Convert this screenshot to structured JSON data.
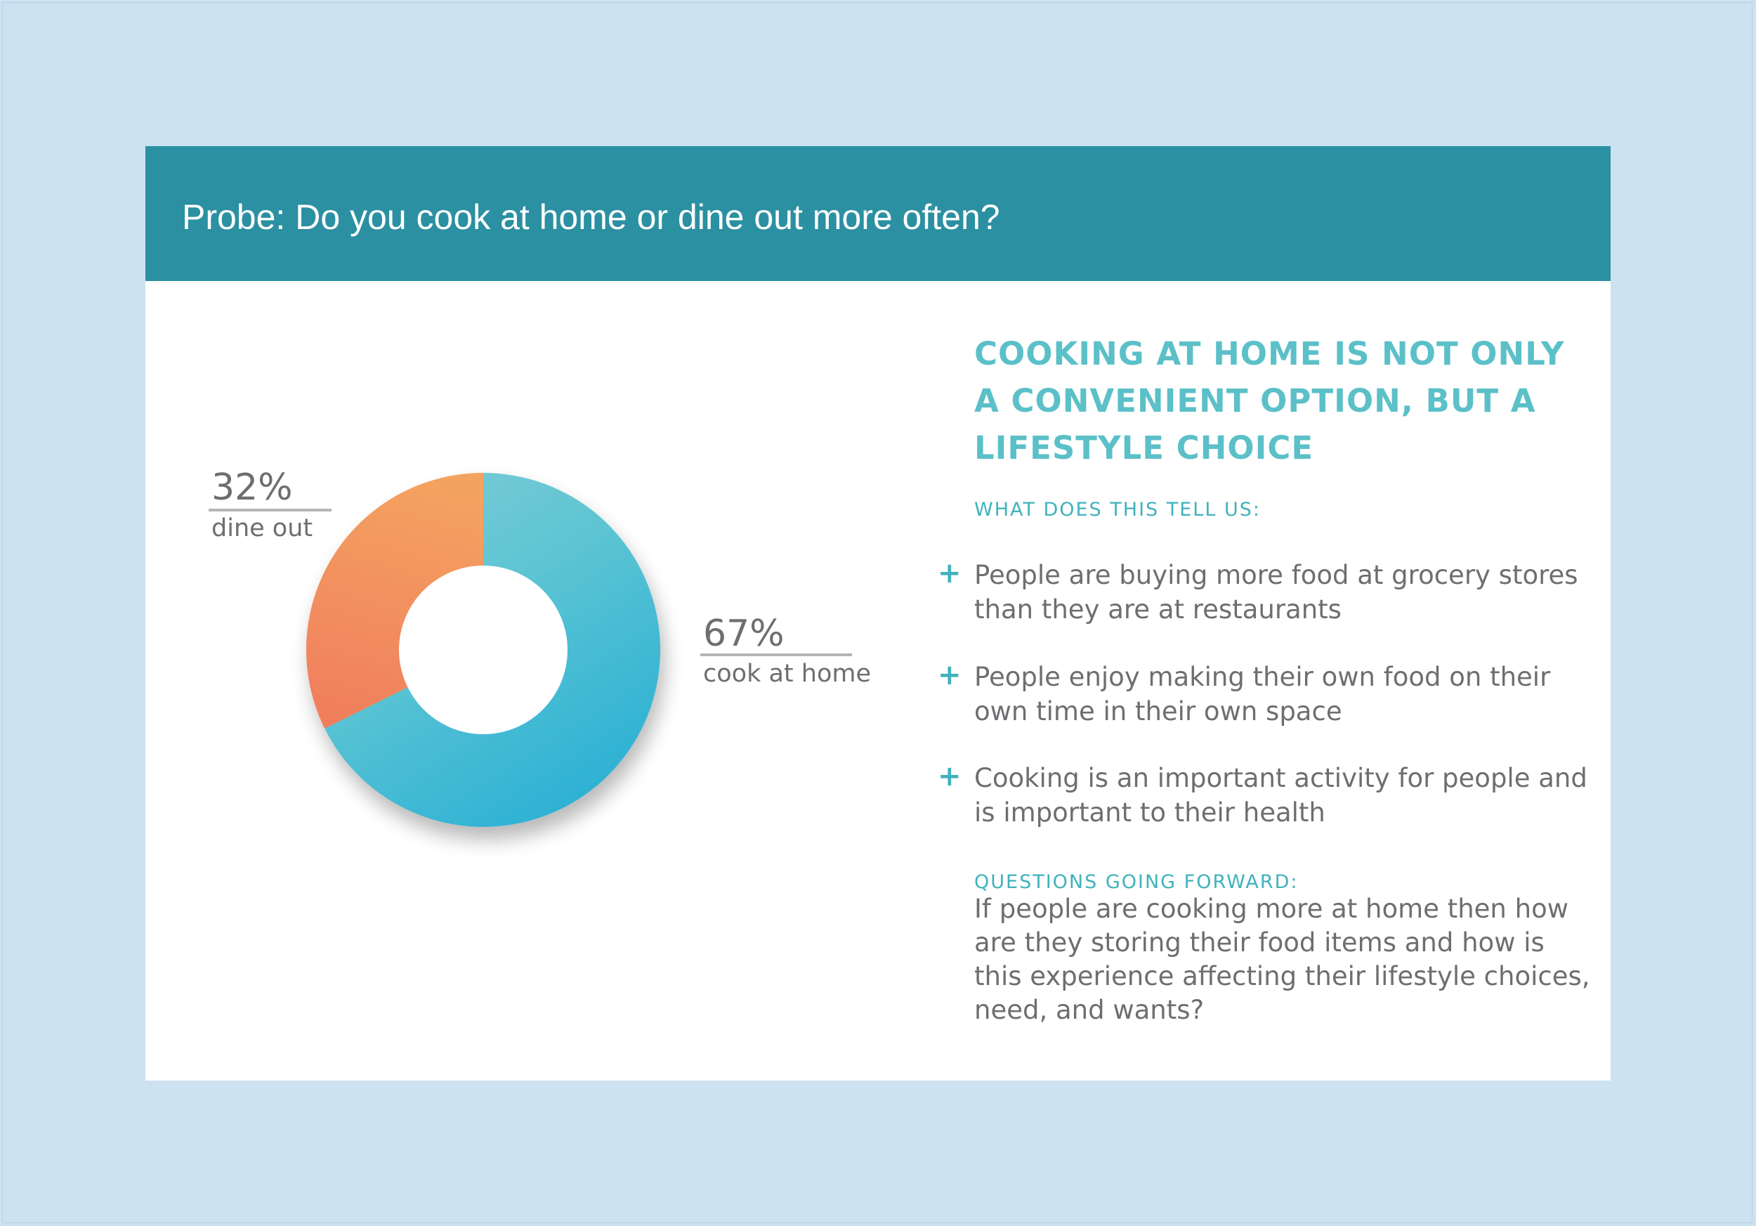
{
  "header": {
    "title": "Probe: Do you cook at home or dine out more often?"
  },
  "chart_data": {
    "type": "pie",
    "donut": true,
    "slices": [
      {
        "label": "cook at home",
        "value": 67,
        "display": "67%",
        "color": "#3fbad3"
      },
      {
        "label": "dine out",
        "value": 32,
        "display": "32%",
        "color": "#f3895f"
      }
    ]
  },
  "insights": {
    "headline": "COOKING AT HOME IS NOT ONLY A CONVENIENT OPTION, BUT A LIFESTYLE CHOICE",
    "what_label": "WHAT DOES THIS TELL US:",
    "bullets": [
      "People are buying more food at grocery stores than they are at restaurants",
      "People enjoy making their own food on their own time in their own space",
      "Cooking is an important activity for people and is important to their health"
    ],
    "bullet_symbol": "+",
    "questions_label": "QUESTIONS GOING FORWARD:",
    "questions_text": "If people are cooking more at home then how are they storing their food items and how is this experience affecting their lifestyle choices, need, and wants?"
  },
  "colors": {
    "background": "#cce2f0",
    "header": "#2b90a1",
    "accent": "#3fb2bc",
    "text": "#6d6e71"
  }
}
